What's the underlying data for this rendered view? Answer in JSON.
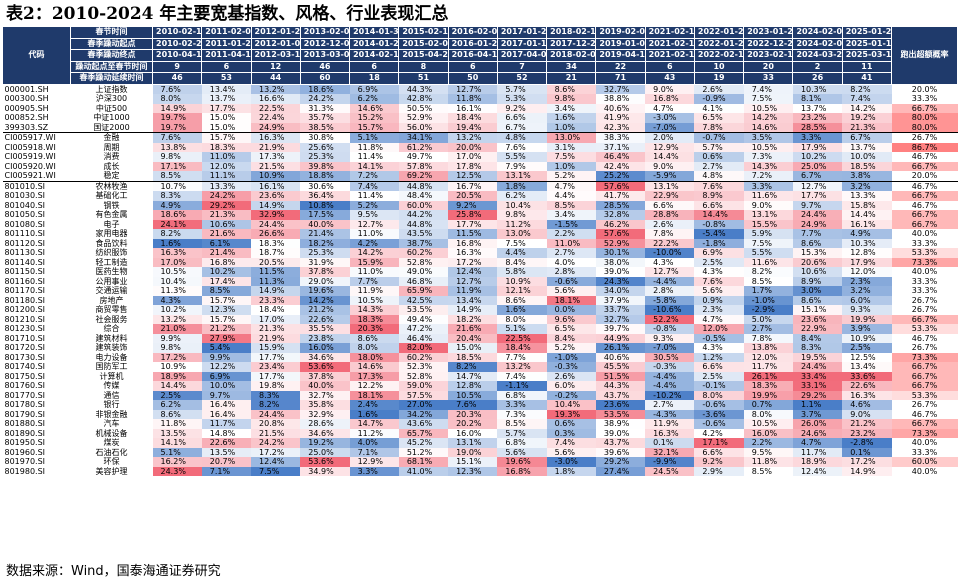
{
  "title": "表2：2010-2024 年主要宽基指数、风格、行业表现汇总",
  "source": "数据来源：Wind，国泰海通证券研究",
  "header": {
    "code_label": "代码",
    "rate_label": "跑出超额概率",
    "row_labels": [
      "春节时间",
      "春季躁动起点",
      "春季躁动终点",
      "躁动起点至春节时间",
      "春季躁动延续时间"
    ],
    "years": [
      [
        "2010-02-12",
        "2010-02-22",
        "2010-04-14",
        "9",
        "46"
      ],
      [
        "2011-02-02",
        "2011-01-25",
        "2011-04-18",
        "6",
        "53"
      ],
      [
        "2012-01-20",
        "2012-01-06",
        "2012-03-13",
        "12",
        "44"
      ],
      [
        "2013-02-08",
        "2012-12-04",
        "2013-03-07",
        "46",
        "60"
      ],
      [
        "2014-01-30",
        "2014-01-20",
        "2014-02-19",
        "6",
        "18"
      ],
      [
        "2015-02-17",
        "2015-02-06",
        "2015-04-27",
        "8",
        "51"
      ],
      [
        "2016-02-05",
        "2016-01-28",
        "2016-04-13",
        "6",
        "50"
      ],
      [
        "2017-01-26",
        "2017-01-19",
        "2017-04-05",
        "7",
        "52"
      ],
      [
        "2018-02-14",
        "2017-12-28",
        "2018-02-01",
        "34",
        "21"
      ],
      [
        "2019-02-01",
        "2019-01-03",
        "2019-04-19",
        "22",
        "71"
      ],
      [
        "2021-02-10",
        "2021-02-10",
        "2021-02-18",
        "6",
        "43"
      ],
      [
        "2022-01-28",
        "2022-01-28",
        "2022-02-18",
        "10",
        "19"
      ],
      [
        "2023-01-20",
        "2022-12-23",
        "2023-02-15",
        "20",
        "33"
      ],
      [
        "2024-02-08",
        "2024-02-07",
        "2024-03-21",
        "2",
        "26"
      ],
      [
        "2025-01-27",
        "2025-01-13",
        "2025-03-18",
        "11",
        "41"
      ]
    ]
  },
  "rows": [
    {
      "code": "000001.SH",
      "name": "上证指数",
      "vals": [
        "7.6%",
        "13.4%",
        "13.2%",
        "18.6%",
        "6.9%",
        "44.3%",
        "12.7%",
        "5.7%",
        "8.6%",
        "32.7%",
        "9.0%",
        "2.6%",
        "7.4%",
        "10.3%",
        "8.2%"
      ],
      "rate": "20.0%"
    },
    {
      "code": "000300.SH",
      "name": "沪深300",
      "vals": [
        "8.0%",
        "13.7%",
        "16.6%",
        "24.2%",
        "6.2%",
        "42.8%",
        "11.8%",
        "5.3%",
        "9.8%",
        "38.8%",
        "16.8%",
        "-0.9%",
        "7.5%",
        "8.1%",
        "7.4%"
      ],
      "rate": "33.3%"
    },
    {
      "code": "000905.SH",
      "name": "中证500",
      "vals": [
        "14.9%",
        "17.7%",
        "22.5%",
        "31.3%",
        "14.6%",
        "50.5%",
        "16.1%",
        "9.2%",
        "3.4%",
        "40.6%",
        "4.7%",
        "4.1%",
        "10.5%",
        "13.7%",
        "14.2%"
      ],
      "rate": "66.7%"
    },
    {
      "code": "000852.SH",
      "name": "中证1000",
      "vals": [
        "19.7%",
        "15.0%",
        "22.4%",
        "35.7%",
        "15.2%",
        "52.9%",
        "18.4%",
        "6.6%",
        "1.6%",
        "41.9%",
        "-3.0%",
        "6.5%",
        "14.2%",
        "23.2%",
        "19.2%"
      ],
      "rate": "80.0%"
    },
    {
      "code": "399303.SZ",
      "name": "国证2000",
      "vals": [
        "19.7%",
        "15.0%",
        "24.9%",
        "38.5%",
        "15.7%",
        "56.0%",
        "19.4%",
        "6.7%",
        "1.0%",
        "42.3%",
        "-7.0%",
        "7.8%",
        "14.6%",
        "28.5%",
        "21.3%"
      ],
      "rate": "80.0%"
    },
    {
      "code": "CI005917.WI",
      "name": "金融",
      "vals": [
        "7.6%",
        "15.7%",
        "16.3%",
        "30.8%",
        "5.1%",
        "34.1%",
        "13.2%",
        "4.8%",
        "13.0%",
        "38.3%",
        "2.0%",
        "-0.7%",
        "3.5%",
        "3.3%",
        "6.7%"
      ],
      "rate": "26.7%"
    },
    {
      "code": "CI005918.WI",
      "name": "周期",
      "vals": [
        "13.8%",
        "18.3%",
        "21.9%",
        "25.6%",
        "11.8%",
        "61.2%",
        "20.0%",
        "7.6%",
        "3.1%",
        "37.1%",
        "12.9%",
        "5.7%",
        "10.5%",
        "17.9%",
        "13.7%"
      ],
      "rate": "86.7%"
    },
    {
      "code": "CI005919.WI",
      "name": "消费",
      "vals": [
        "9.8%",
        "11.0%",
        "17.3%",
        "25.3%",
        "11.4%",
        "49.7%",
        "17.0%",
        "5.5%",
        "7.5%",
        "46.4%",
        "14.4%",
        "0.6%",
        "7.3%",
        "10.2%",
        "10.0%"
      ],
      "rate": "46.7%"
    },
    {
      "code": "CI005920.WI",
      "name": "成长",
      "vals": [
        "17.1%",
        "12.0%",
        "21.5%",
        "39.8%",
        "14.1%",
        "57.8%",
        "17.8%",
        "7.9%",
        "1.0%",
        "42.4%",
        "9.0%",
        "2.7%",
        "14.3%",
        "25.0%",
        "18.5%"
      ],
      "rate": "66.7%"
    },
    {
      "code": "CI005921.WI",
      "name": "稳定",
      "vals": [
        "8.5%",
        "11.1%",
        "10.9%",
        "18.8%",
        "7.2%",
        "69.2%",
        "12.5%",
        "13.1%",
        "5.2%",
        "25.2%",
        "-5.9%",
        "4.8%",
        "7.2%",
        "6.7%",
        "3.8%"
      ],
      "rate": "20.0%"
    },
    {
      "code": "801010.SI",
      "name": "农林牧渔",
      "vals": [
        "10.7%",
        "13.3%",
        "16.1%",
        "30.6%",
        "7.4%",
        "44.8%",
        "16.7%",
        "1.8%",
        "4.7%",
        "57.6%",
        "13.1%",
        "7.6%",
        "3.3%",
        "12.7%",
        "3.2%"
      ],
      "rate": "46.7%"
    },
    {
      "code": "801030.SI",
      "name": "基础化工",
      "vals": [
        "8.3%",
        "24.2%",
        "23.6%",
        "36.4%",
        "11.4%",
        "48.4%",
        "20.5%",
        "6.2%",
        "4.4%",
        "41.7%",
        "22.9%",
        "8.9%",
        "11.6%",
        "17.7%",
        "13.3%"
      ],
      "rate": "66.7%"
    },
    {
      "code": "801040.SI",
      "name": "钢铁",
      "vals": [
        "4.9%",
        "29.2%",
        "14.9%",
        "10.8%",
        "5.2%",
        "60.0%",
        "9.2%",
        "10.4%",
        "8.5%",
        "28.5%",
        "6.6%",
        "6.6%",
        "9.0%",
        "9.7%",
        "15.8%"
      ],
      "rate": "46.7%"
    },
    {
      "code": "801050.SI",
      "name": "有色金属",
      "vals": [
        "18.6%",
        "21.3%",
        "32.9%",
        "17.5%",
        "9.5%",
        "44.2%",
        "25.8%",
        "9.8%",
        "3.4%",
        "32.8%",
        "28.8%",
        "14.4%",
        "13.1%",
        "24.4%",
        "14.4%"
      ],
      "rate": "66.7%"
    },
    {
      "code": "801080.SI",
      "name": "电子",
      "vals": [
        "24.1%",
        "10.6%",
        "24.4%",
        "40.0%",
        "12.7%",
        "44.8%",
        "17.7%",
        "11.2%",
        "-1.5%",
        "46.2%",
        "2.6%",
        "-0.8%",
        "15.5%",
        "24.9%",
        "16.1%"
      ],
      "rate": "66.7%"
    },
    {
      "code": "801110.SI",
      "name": "家用电器",
      "vals": [
        "8.2%",
        "21.6%",
        "26.6%",
        "21.4%",
        "11.0%",
        "43.5%",
        "11.5%",
        "13.0%",
        "2.2%",
        "57.6%",
        "7.8%",
        "-5.4%",
        "5.9%",
        "7.7%",
        "4.9%"
      ],
      "rate": "40.0%"
    },
    {
      "code": "801120.SI",
      "name": "食品饮料",
      "vals": [
        "1.6%",
        "6.1%",
        "18.3%",
        "18.2%",
        "4.2%",
        "38.7%",
        "16.8%",
        "7.5%",
        "11.0%",
        "52.9%",
        "22.2%",
        "-1.8%",
        "7.5%",
        "8.6%",
        "10.3%"
      ],
      "rate": "33.3%"
    },
    {
      "code": "801130.SI",
      "name": "纺织服饰",
      "vals": [
        "16.3%",
        "21.4%",
        "18.7%",
        "25.3%",
        "14.2%",
        "60.2%",
        "16.3%",
        "4.4%",
        "2.7%",
        "30.1%",
        "-10.0%",
        "6.9%",
        "5.5%",
        "15.3%",
        "12.8%"
      ],
      "rate": "53.3%"
    },
    {
      "code": "801140.SI",
      "name": "轻工制造",
      "vals": [
        "17.0%",
        "16.8%",
        "20.5%",
        "31.9%",
        "15.9%",
        "52.8%",
        "17.2%",
        "8.4%",
        "4.0%",
        "38.0%",
        "4.3%",
        "2.5%",
        "11.6%",
        "20.6%",
        "17.9%"
      ],
      "rate": "73.3%"
    },
    {
      "code": "801150.SI",
      "name": "医药生物",
      "vals": [
        "10.5%",
        "10.2%",
        "11.5%",
        "37.8%",
        "11.0%",
        "49.0%",
        "12.4%",
        "5.8%",
        "2.8%",
        "39.0%",
        "12.7%",
        "4.3%",
        "8.2%",
        "10.6%",
        "12.0%"
      ],
      "rate": "40.0%"
    },
    {
      "code": "801160.SI",
      "name": "公用事业",
      "vals": [
        "10.4%",
        "17.4%",
        "11.3%",
        "29.0%",
        "7.7%",
        "46.8%",
        "12.7%",
        "10.9%",
        "-0.6%",
        "24.3%",
        "-4.4%",
        "7.6%",
        "8.5%",
        "8.9%",
        "2.3%"
      ],
      "rate": "33.3%"
    },
    {
      "code": "801170.SI",
      "name": "交通运输",
      "vals": [
        "11.3%",
        "8.5%",
        "14.9%",
        "19.6%",
        "11.9%",
        "65.9%",
        "11.9%",
        "12.1%",
        "5.6%",
        "34.0%",
        "2.8%",
        "5.6%",
        "1.7%",
        "3.0%",
        "3.2%"
      ],
      "rate": "33.3%"
    },
    {
      "code": "801180.SI",
      "name": "房地产",
      "vals": [
        "4.3%",
        "15.7%",
        "23.3%",
        "14.2%",
        "10.5%",
        "42.5%",
        "13.4%",
        "8.6%",
        "18.1%",
        "37.9%",
        "-5.8%",
        "0.9%",
        "-1.0%",
        "8.6%",
        "6.0%"
      ],
      "rate": "26.7%"
    },
    {
      "code": "801200.SI",
      "name": "商贸零售",
      "vals": [
        "10.2%",
        "12.3%",
        "18.4%",
        "21.2%",
        "14.3%",
        "53.5%",
        "14.9%",
        "1.6%",
        "0.0%",
        "33.7%",
        "-10.6%",
        "2.3%",
        "-2.9%",
        "15.1%",
        "9.3%"
      ],
      "rate": "26.7%"
    },
    {
      "code": "801210.SI",
      "name": "社会服务",
      "vals": [
        "13.2%",
        "15.7%",
        "17.0%",
        "22.6%",
        "18.3%",
        "49.4%",
        "18.2%",
        "8.0%",
        "9.6%",
        "32.7%",
        "52.2%",
        "4.7%",
        "5.0%",
        "23.6%",
        "19.9%"
      ],
      "rate": "66.7%"
    },
    {
      "code": "801230.SI",
      "name": "综合",
      "vals": [
        "21.0%",
        "21.2%",
        "21.3%",
        "35.5%",
        "20.3%",
        "47.2%",
        "21.6%",
        "5.1%",
        "6.5%",
        "39.7%",
        "-0.8%",
        "12.0%",
        "2.7%",
        "22.9%",
        "3.9%"
      ],
      "rate": "53.3%"
    },
    {
      "code": "801710.SI",
      "name": "建筑材料",
      "vals": [
        "9.9%",
        "27.9%",
        "21.9%",
        "23.8%",
        "8.6%",
        "46.4%",
        "20.4%",
        "22.5%",
        "8.4%",
        "44.9%",
        "9.3%",
        "-0.5%",
        "7.8%",
        "8.4%",
        "10.9%"
      ],
      "rate": "46.7%"
    },
    {
      "code": "801720.SI",
      "name": "建筑装饰",
      "vals": [
        "9.8%",
        "5.4%",
        "15.9%",
        "16.0%",
        "8.0%",
        "82.0%",
        "15.0%",
        "18.4%",
        "5.2%",
        "26.1%",
        "-7.0%",
        "4.3%",
        "13.8%",
        "8.3%",
        "2.5%"
      ],
      "rate": "26.7%"
    },
    {
      "code": "801730.SI",
      "name": "电力设备",
      "vals": [
        "17.2%",
        "9.9%",
        "17.7%",
        "34.6%",
        "18.0%",
        "60.2%",
        "18.5%",
        "7.7%",
        "-1.0%",
        "40.6%",
        "30.5%",
        "1.2%",
        "12.0%",
        "19.5%",
        "12.5%"
      ],
      "rate": "73.3%"
    },
    {
      "code": "801740.SI",
      "name": "国防军工",
      "vals": [
        "10.9%",
        "12.2%",
        "23.4%",
        "53.6%",
        "14.6%",
        "52.3%",
        "8.2%",
        "13.2%",
        "-0.3%",
        "45.5%",
        "-0.3%",
        "6.6%",
        "11.7%",
        "24.4%",
        "13.4%"
      ],
      "rate": "66.7%"
    },
    {
      "code": "801750.SI",
      "name": "计算机",
      "vals": [
        "18.9%",
        "6.9%",
        "17.7%",
        "37.8%",
        "17.3%",
        "52.8%",
        "14.7%",
        "7.4%",
        "2.6%",
        "51.5%",
        "-4.4%",
        "2.5%",
        "26.1%",
        "33.4%",
        "33.6%"
      ],
      "rate": "66.7%"
    },
    {
      "code": "801760.SI",
      "name": "传媒",
      "vals": [
        "14.4%",
        "10.0%",
        "19.8%",
        "40.0%",
        "12.2%",
        "59.0%",
        "12.8%",
        "-1.1%",
        "6.0%",
        "44.3%",
        "-4.4%",
        "-0.1%",
        "18.3%",
        "33.1%",
        "22.6%"
      ],
      "rate": "66.7%"
    },
    {
      "code": "801770.SI",
      "name": "通信",
      "vals": [
        "2.5%",
        "9.7%",
        "8.3%",
        "32.7%",
        "18.1%",
        "57.5%",
        "10.5%",
        "6.8%",
        "-0.2%",
        "43.7%",
        "-10.2%",
        "8.0%",
        "19.9%",
        "29.2%",
        "16.3%"
      ],
      "rate": "53.3%"
    },
    {
      "code": "801780.SI",
      "name": "银行",
      "vals": [
        "6.2%",
        "16.4%",
        "8.2%",
        "35.8%",
        "2.4%",
        "27.0%",
        "7.6%",
        "3.3%",
        "10.4%",
        "23.6%",
        "2.7%",
        "-0.6%",
        "0.7%",
        "1.1%",
        "4.6%"
      ],
      "rate": "26.7%"
    },
    {
      "code": "801790.SI",
      "name": "非银金融",
      "vals": [
        "8.6%",
        "16.4%",
        "24.4%",
        "32.9%",
        "1.6%",
        "34.2%",
        "20.3%",
        "7.3%",
        "19.3%",
        "53.5%",
        "-4.3%",
        "-3.6%",
        "8.0%",
        "3.7%",
        "9.0%"
      ],
      "rate": "46.7%"
    },
    {
      "code": "801880.SI",
      "name": "汽车",
      "vals": [
        "11.8%",
        "11.7%",
        "20.8%",
        "28.6%",
        "14.7%",
        "43.6%",
        "20.2%",
        "8.5%",
        "0.6%",
        "38.9%",
        "11.9%",
        "-0.6%",
        "10.5%",
        "26.0%",
        "21.2%"
      ],
      "rate": "66.7%"
    },
    {
      "code": "801890.SI",
      "name": "机械设备",
      "vals": [
        "13.5%",
        "14.8%",
        "21.5%",
        "34.6%",
        "11.2%",
        "65.7%",
        "16.0%",
        "5.7%",
        "0.3%",
        "39.0%",
        "16.3%",
        "4.2%",
        "16.0%",
        "24.6%",
        "23.2%"
      ],
      "rate": "73.3%"
    },
    {
      "code": "801950.SI",
      "name": "煤炭",
      "vals": [
        "14.1%",
        "22.6%",
        "24.2%",
        "19.2%",
        "4.0%",
        "45.2%",
        "13.1%",
        "6.8%",
        "7.4%",
        "43.7%",
        "0.1%",
        "17.1%",
        "2.2%",
        "4.7%",
        "-2.8%"
      ],
      "rate": "40.0%"
    },
    {
      "code": "801960.SI",
      "name": "石油石化",
      "vals": [
        "5.1%",
        "13.5%",
        "17.2%",
        "25.0%",
        "7.1%",
        "51.2%",
        "19.0%",
        "5.6%",
        "5.6%",
        "39.6%",
        "32.1%",
        "6.6%",
        "9.5%",
        "11.7%",
        "0.1%"
      ],
      "rate": "33.3%"
    },
    {
      "code": "801970.SI",
      "name": "环保",
      "vals": [
        "16.2%",
        "20.7%",
        "12.4%",
        "53.6%",
        "12.9%",
        "68.1%",
        "15.1%",
        "19.6%",
        "-3.0%",
        "29.2%",
        "-9.9%",
        "9.2%",
        "11.8%",
        "18.9%",
        "17.2%"
      ],
      "rate": "60.0%"
    },
    {
      "code": "801980.SI",
      "name": "美容护理",
      "vals": [
        "24.3%",
        "7.1%",
        "7.5%",
        "34.9%",
        "3.3%",
        "41.0%",
        "12.3%",
        "16.8%",
        "1.8%",
        "27.4%",
        "24.5%",
        "2.9%",
        "8.5%",
        "12.4%",
        "14.9%"
      ],
      "rate": "40.0%"
    }
  ]
}
